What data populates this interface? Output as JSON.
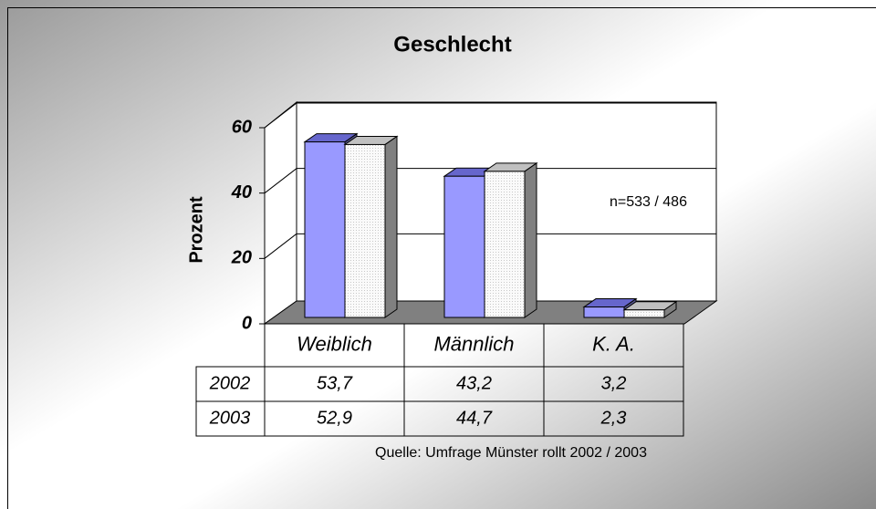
{
  "chart_data": {
    "type": "bar",
    "title": "Geschlecht",
    "y_label": "Prozent",
    "categories": [
      "Weiblich",
      "Männlich",
      "K. A."
    ],
    "series": [
      {
        "name": "2002",
        "color": "#9999ff",
        "values": [
          53.7,
          43.2,
          3.2
        ],
        "value_labels": [
          "53,7",
          "43,2",
          "3,2"
        ]
      },
      {
        "name": "2003",
        "color": "#f2f2f2",
        "values": [
          52.9,
          44.7,
          2.3
        ],
        "value_labels": [
          "52,9",
          "44,7",
          "2,3"
        ]
      }
    ],
    "ylim": [
      0,
      60
    ],
    "yticks": [
      0,
      20,
      40,
      60
    ],
    "grid": true,
    "annotation": "n=533 / 486",
    "source": "Quelle: Umfrage Münster rollt 2002 / 2003"
  }
}
